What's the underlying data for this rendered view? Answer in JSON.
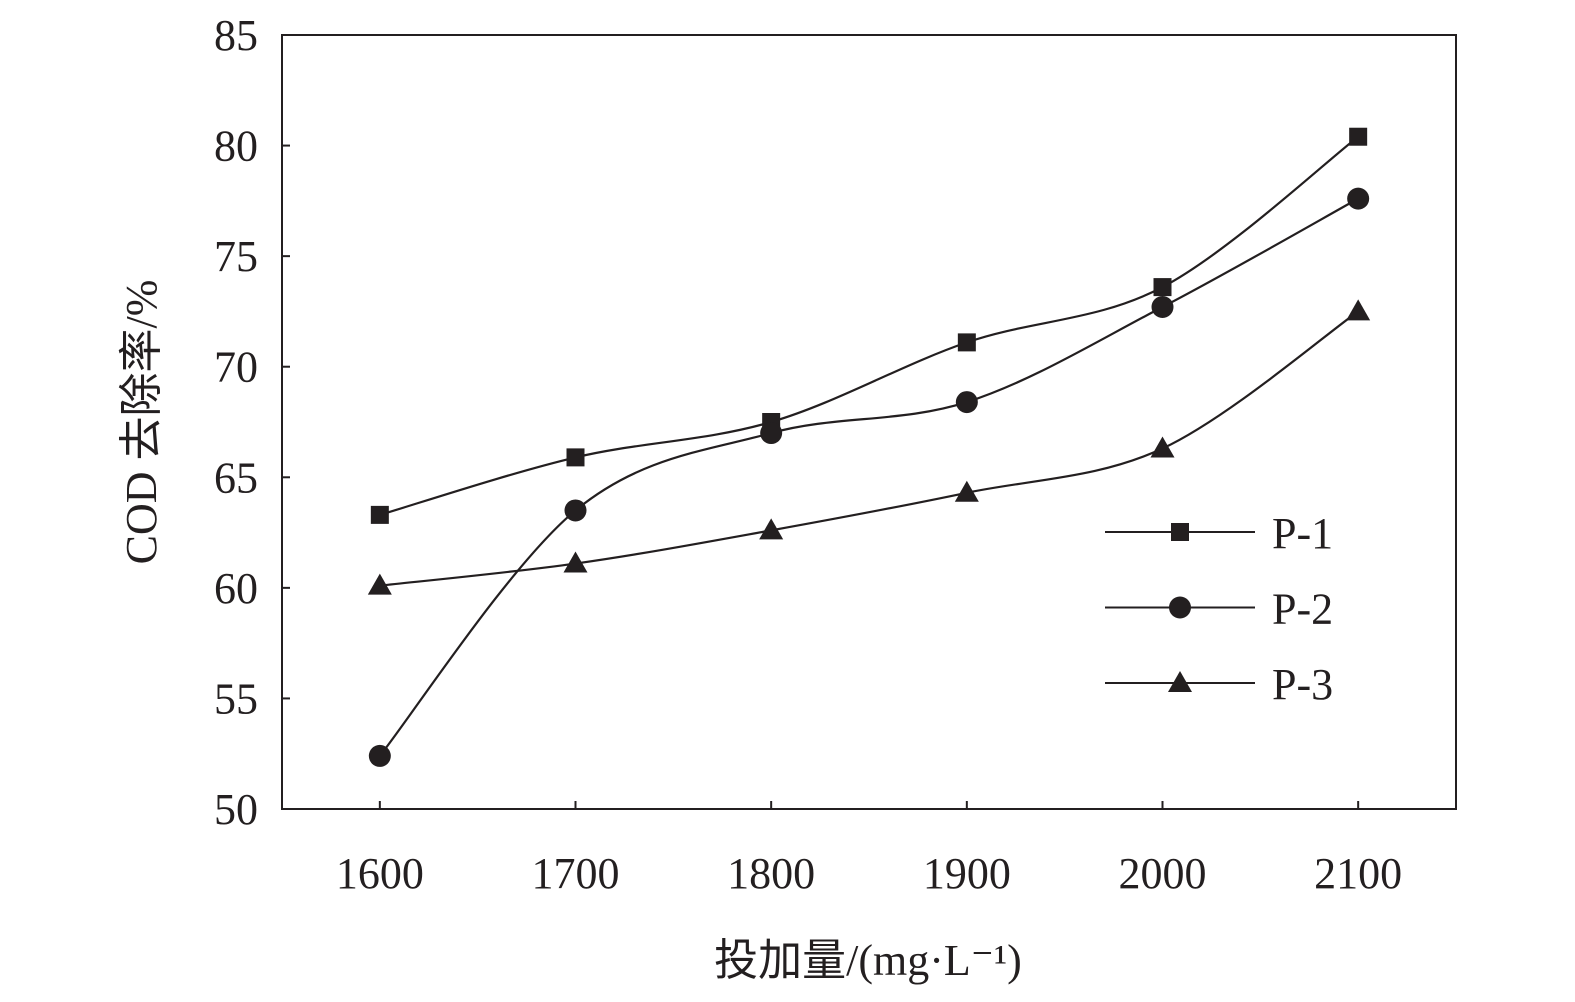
{
  "chart_data": {
    "type": "line",
    "title": "",
    "xlabel": "投加量/(mg·L⁻¹)",
    "ylabel": "COD 去除率/%",
    "x": [
      1600,
      1700,
      1800,
      1900,
      2000,
      2100
    ],
    "xlim": [
      1550,
      2150
    ],
    "ylim": [
      50,
      85
    ],
    "xticks": [
      "1600",
      "1700",
      "1800",
      "1900",
      "2000",
      "2100"
    ],
    "yticks": [
      "50",
      "55",
      "60",
      "65",
      "70",
      "75",
      "80",
      "85"
    ],
    "grid": false,
    "legend_position": "lower-right",
    "series": [
      {
        "name": "P-1",
        "marker": "square",
        "values": [
          63.3,
          65.9,
          67.5,
          71.1,
          73.6,
          80.4
        ]
      },
      {
        "name": "P-2",
        "marker": "circle",
        "values": [
          52.4,
          63.5,
          67.0,
          68.4,
          72.7,
          77.6
        ]
      },
      {
        "name": "P-3",
        "marker": "triangle",
        "values": [
          60.1,
          61.1,
          62.6,
          64.3,
          66.3,
          72.5
        ]
      }
    ],
    "color": "#231f20"
  }
}
